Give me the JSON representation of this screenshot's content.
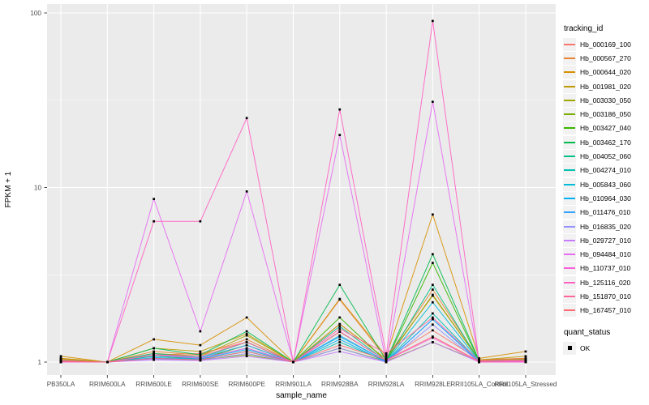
{
  "figure": {
    "bg": "#FFFFFF",
    "panel_bg": "#EBEBEB",
    "grid_color": "#FFFFFF",
    "tick_color": "#333333",
    "tick_label_color": "#4D4D4D",
    "title_color": "#000000"
  },
  "legend": {
    "tracking_title": "tracking_id",
    "quant_title": "quant_status",
    "quant_items": [
      {
        "label": "OK"
      }
    ]
  },
  "chart_data": {
    "type": "line",
    "title": "",
    "xlabel": "sample_name",
    "ylabel": "FPKM + 1",
    "y_scale": "log10",
    "y_ticks": [
      1,
      10,
      100
    ],
    "y_tick_labels": [
      "1",
      "10",
      "100"
    ],
    "y_minor_gridlines": [
      3.1623,
      31.623
    ],
    "ylim": [
      0.84,
      112
    ],
    "grid": true,
    "legend_position": "right",
    "point_shape": "black-square",
    "point_color": "#000000",
    "categories": [
      "PB350LA",
      "RRIM600LA",
      "RRIM600LE",
      "RRIM600SE",
      "RRIM600PE",
      "RRIM901LA",
      "RRIM928BA",
      "RRIM928LA",
      "RRIM928LE",
      "RRII105LA_Control",
      "RRII105LA_Stressed"
    ],
    "series": [
      {
        "name": "Hb_000169_100",
        "color": "#F8766D",
        "values": [
          1.05,
          1.0,
          1.1,
          1.12,
          1.3,
          1.0,
          1.65,
          1.04,
          1.52,
          1.03,
          1.05
        ]
      },
      {
        "name": "Hb_000567_270",
        "color": "#EA8331",
        "values": [
          1.04,
          1.0,
          1.15,
          1.1,
          1.35,
          1.0,
          2.28,
          1.05,
          2.6,
          1.03,
          1.05
        ]
      },
      {
        "name": "Hb_000644_020",
        "color": "#D89000",
        "values": [
          1.08,
          1.0,
          1.35,
          1.25,
          1.8,
          1.0,
          2.3,
          1.08,
          7.0,
          1.05,
          1.15
        ]
      },
      {
        "name": "Hb_001981_020",
        "color": "#C09B00",
        "values": [
          1.05,
          1.0,
          1.2,
          1.15,
          1.45,
          1.0,
          1.65,
          1.04,
          2.4,
          1.03,
          1.08
        ]
      },
      {
        "name": "Hb_003030_050",
        "color": "#A3A500",
        "values": [
          1.03,
          1.0,
          1.12,
          1.08,
          1.42,
          1.0,
          1.49,
          1.02,
          2.43,
          1.02,
          1.04
        ]
      },
      {
        "name": "Hb_003186_050",
        "color": "#7CAE00",
        "values": [
          1.02,
          1.0,
          1.05,
          1.03,
          1.1,
          1.0,
          1.2,
          1.01,
          1.3,
          1.01,
          1.02
        ]
      },
      {
        "name": "Hb_003427_040",
        "color": "#39B600",
        "values": [
          1.01,
          1.0,
          1.08,
          1.04,
          1.25,
          1.0,
          1.8,
          1.01,
          3.7,
          1.01,
          1.02
        ]
      },
      {
        "name": "Hb_003462_170",
        "color": "#00BB4E",
        "values": [
          1.02,
          1.0,
          1.2,
          1.1,
          1.5,
          1.0,
          2.77,
          1.02,
          4.15,
          1.02,
          1.03
        ]
      },
      {
        "name": "Hb_004052_060",
        "color": "#00C087",
        "values": [
          1.02,
          1.0,
          1.12,
          1.06,
          1.3,
          1.0,
          1.6,
          1.01,
          2.77,
          1.01,
          1.02
        ]
      },
      {
        "name": "Hb_004274_010",
        "color": "#00C0B2",
        "values": [
          1.01,
          1.0,
          1.05,
          1.03,
          1.15,
          1.0,
          1.3,
          1.01,
          1.9,
          1.01,
          1.01
        ]
      },
      {
        "name": "Hb_005843_060",
        "color": "#00BCD8",
        "values": [
          1.01,
          1.0,
          1.08,
          1.05,
          1.2,
          1.0,
          1.4,
          1.01,
          2.2,
          1.01,
          1.02
        ]
      },
      {
        "name": "Hb_010964_030",
        "color": "#00B0F6",
        "values": [
          1.01,
          1.0,
          1.06,
          1.04,
          1.18,
          1.0,
          1.35,
          1.0,
          1.76,
          1.0,
          1.01
        ]
      },
      {
        "name": "Hb_011476_010",
        "color": "#35A2FF",
        "values": [
          1.01,
          1.0,
          1.1,
          1.06,
          1.25,
          1.0,
          1.42,
          1.01,
          1.76,
          1.01,
          1.01
        ]
      },
      {
        "name": "Hb_016835_020",
        "color": "#9590FF",
        "values": [
          1.0,
          1.0,
          1.04,
          1.02,
          1.12,
          1.0,
          1.2,
          1.0,
          1.64,
          1.0,
          1.01
        ]
      },
      {
        "name": "Hb_029727_010",
        "color": "#C77CFF",
        "values": [
          1.0,
          1.0,
          1.03,
          1.02,
          1.08,
          1.0,
          1.15,
          1.0,
          1.3,
          1.0,
          1.01
        ]
      },
      {
        "name": "Hb_094484_010",
        "color": "#E76BF3",
        "values": [
          1.0,
          1.0,
          8.6,
          1.5,
          9.5,
          1.0,
          20.0,
          1.0,
          31.0,
          1.0,
          1.0
        ]
      },
      {
        "name": "Hb_110737_010",
        "color": "#FA62DB",
        "values": [
          1.0,
          1.0,
          1.1,
          1.05,
          1.2,
          1.0,
          1.5,
          1.02,
          1.38,
          1.0,
          1.01
        ]
      },
      {
        "name": "Hb_125116_020",
        "color": "#FF61C3",
        "values": [
          1.0,
          1.0,
          6.4,
          6.4,
          25.0,
          1.0,
          28.0,
          1.1,
          90.0,
          1.0,
          1.0
        ]
      },
      {
        "name": "Hb_151870_010",
        "color": "#FF689F",
        "values": [
          1.02,
          1.0,
          1.1,
          1.08,
          1.3,
          1.0,
          1.55,
          1.12,
          1.8,
          1.02,
          1.03
        ]
      },
      {
        "name": "Hb_167457_010",
        "color": "#FF6A73",
        "values": [
          1.01,
          1.0,
          1.05,
          1.03,
          1.15,
          1.0,
          1.25,
          1.03,
          1.4,
          1.01,
          1.02
        ]
      }
    ]
  }
}
